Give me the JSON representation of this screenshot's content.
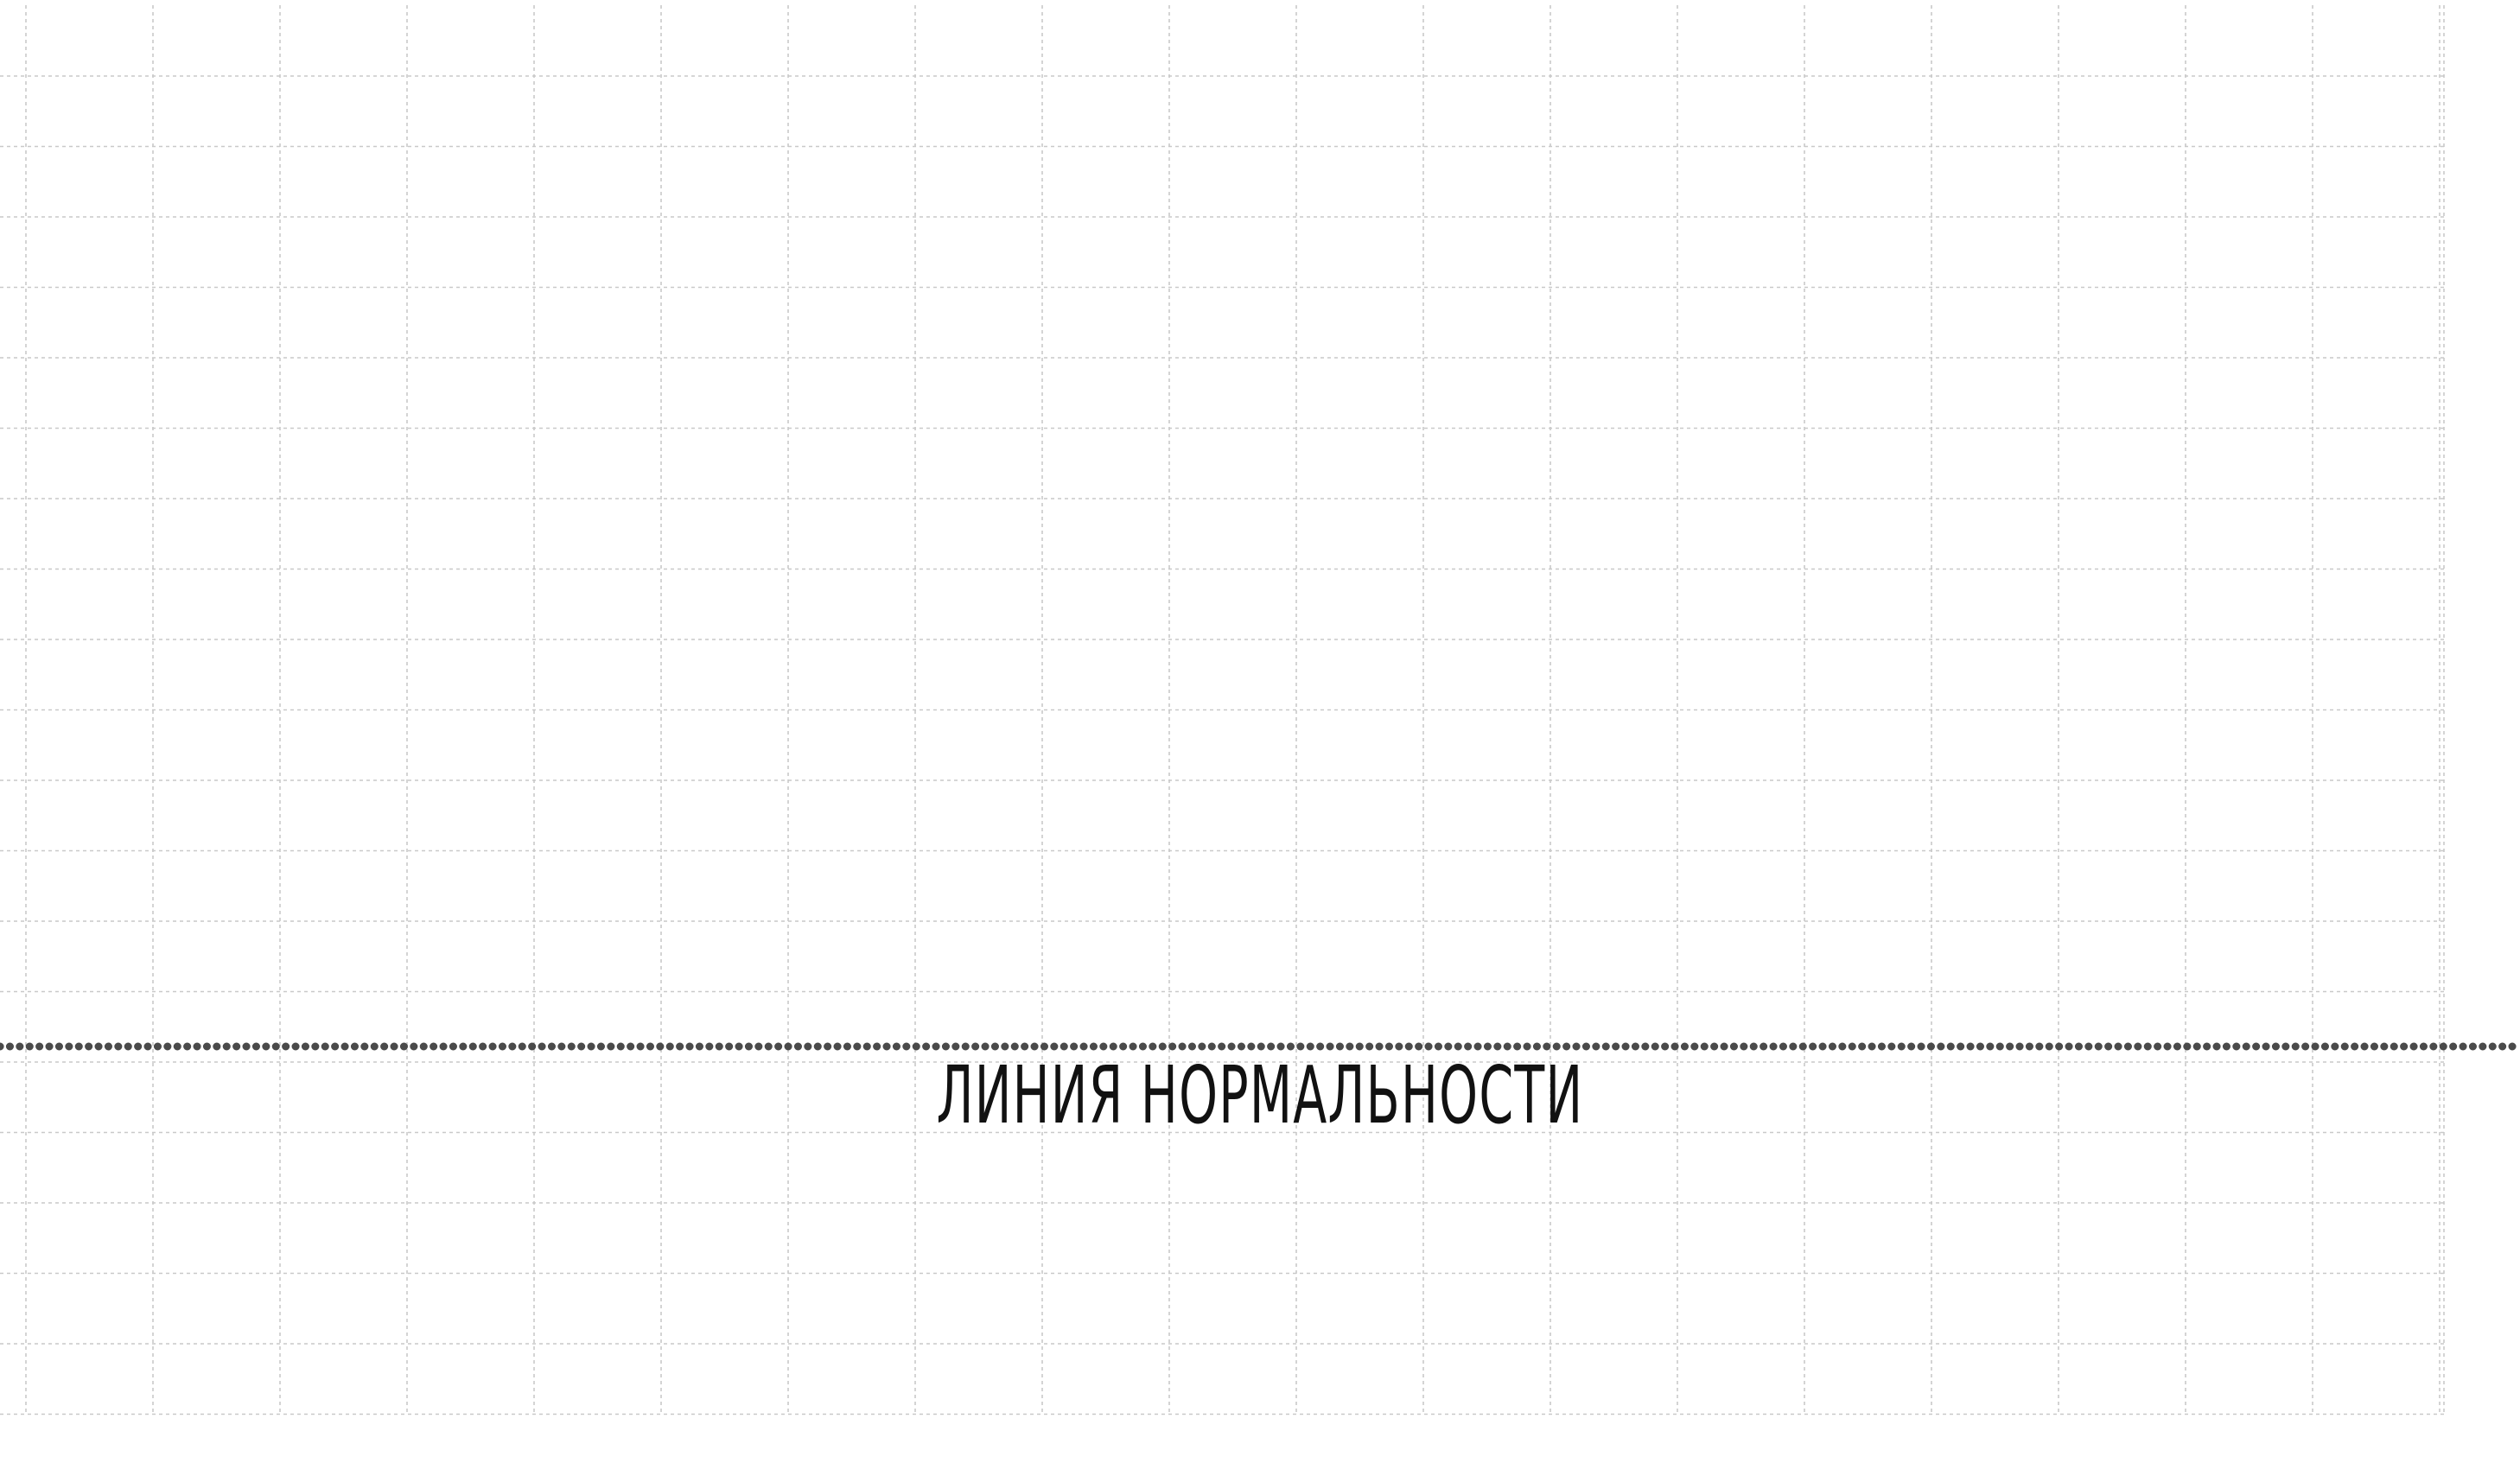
{
  "diagram": {
    "label": "ЛИНИЯ НОРМАЛЬНОСТИ",
    "grid_color": "#c9c9c9",
    "line_color": "#4a4a4a",
    "text_color": "#111111"
  }
}
